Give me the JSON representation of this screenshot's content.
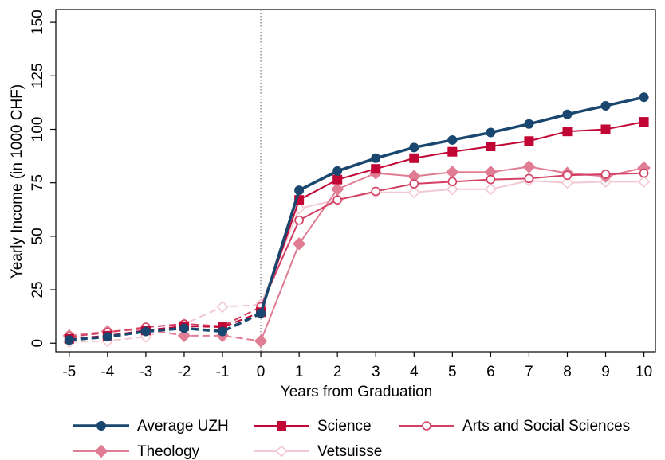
{
  "chart_data": {
    "type": "line",
    "x_label": "Years from Graduation",
    "y_label": "Yearly Income (in 1000 CHF)",
    "x": [
      -5,
      -4,
      -3,
      -2,
      -1,
      0,
      1,
      2,
      3,
      4,
      5,
      6,
      7,
      8,
      9,
      10
    ],
    "vline": 0,
    "series": [
      {
        "name": "Average UZH",
        "color": "#1a476f",
        "marker": "circle",
        "values": [
          1.5,
          3,
          5.5,
          7,
          5.5,
          14,
          71.5,
          80.5,
          86.5,
          91.5,
          95,
          98.5,
          102.5,
          107,
          111,
          115
        ]
      },
      {
        "name": "Science",
        "color": "#c10534",
        "marker": "square",
        "values": [
          2,
          3.5,
          6,
          8,
          7.5,
          14.5,
          67,
          76.5,
          81.5,
          86.5,
          89.5,
          92,
          94.5,
          99,
          100,
          103.5
        ]
      },
      {
        "name": "Arts and Social Sciences",
        "color": "#d33f62",
        "marker": "hollow-circle",
        "values": [
          3,
          5,
          7.5,
          9,
          8,
          17,
          57.5,
          67,
          71,
          74.5,
          75.5,
          76.5,
          77,
          78.5,
          79,
          79.5
        ]
      },
      {
        "name": "Theology",
        "color": "#e07c94",
        "marker": "diamond",
        "values": [
          3.5,
          5.5,
          6.5,
          3.5,
          3.5,
          1,
          46.5,
          72,
          79.5,
          78,
          80,
          80,
          82.5,
          79.5,
          78,
          82
        ]
      },
      {
        "name": "Vetsuisse",
        "color": "#f2c8d3",
        "marker": "hollow-diamond",
        "values": [
          0.5,
          1,
          3,
          9,
          17,
          18,
          63,
          67,
          70.5,
          70.5,
          72,
          72,
          76,
          75,
          75.5,
          75.5
        ]
      }
    ],
    "xlim": [
      -5.35,
      10.3
    ],
    "ylim": [
      -4,
      156
    ],
    "xticks": [
      -5,
      -4,
      -3,
      -2,
      -1,
      0,
      1,
      2,
      3,
      4,
      5,
      6,
      7,
      8,
      9,
      10
    ],
    "yticks": [
      0,
      25,
      50,
      75,
      100,
      125,
      150
    ]
  }
}
